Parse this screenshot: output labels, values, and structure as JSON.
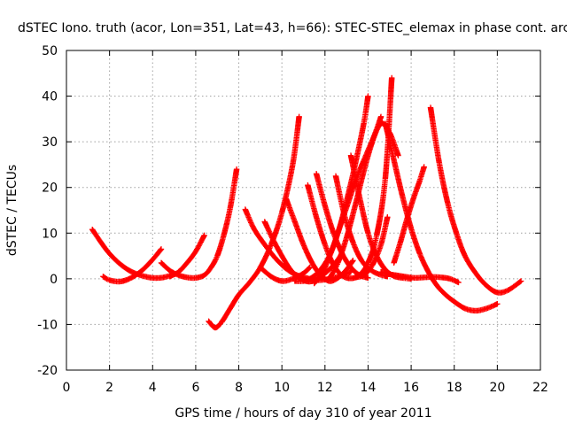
{
  "chart_data": {
    "type": "scatter",
    "title": "dSTEC Iono. truth (acor, Lon=351, Lat=43, h=66): STEC-STEC_elemax in phase cont. arc",
    "xlabel": "GPS time / hours of day 310 of year 2011",
    "ylabel": "dSTEC  / TECUs",
    "xlim": [
      0,
      22
    ],
    "ylim": [
      -20,
      50
    ],
    "xticks": [
      0,
      2,
      4,
      6,
      8,
      10,
      12,
      14,
      16,
      18,
      20,
      22
    ],
    "yticks": [
      -20,
      -10,
      0,
      10,
      20,
      30,
      40,
      50
    ],
    "grid": true,
    "marker": "plus",
    "color": "#ff0000",
    "series": [
      {
        "x": [
          1.2,
          1.6,
          2.0,
          2.5,
          3.0,
          3.5,
          4.0,
          4.5,
          5.0
        ],
        "y": [
          10.8,
          8.0,
          5.5,
          3.2,
          1.6,
          0.7,
          0.2,
          0.3,
          1.0
        ]
      },
      {
        "x": [
          1.7,
          2.0,
          2.5,
          3.0,
          3.5,
          4.0,
          4.4
        ],
        "y": [
          0.5,
          -0.3,
          -0.6,
          0.2,
          1.8,
          4.2,
          6.5
        ]
      },
      {
        "x": [
          4.4,
          4.8,
          5.2,
          5.6,
          6.0,
          6.4,
          6.7,
          7.0,
          7.3,
          7.6,
          7.9
        ],
        "y": [
          3.5,
          1.8,
          0.8,
          0.3,
          0.2,
          0.8,
          2.4,
          5.0,
          9.5,
          15.5,
          24.0
        ]
      },
      {
        "x": [
          4.8,
          5.2,
          5.6,
          6.0,
          6.4
        ],
        "y": [
          0.5,
          1.5,
          3.5,
          6.0,
          9.5
        ]
      },
      {
        "x": [
          6.6,
          6.9,
          7.2,
          7.6,
          8.0,
          8.5,
          9.0,
          9.5,
          10.0,
          10.5,
          10.8
        ],
        "y": [
          -9.3,
          -10.7,
          -9.5,
          -6.5,
          -3.5,
          -0.8,
          2.5,
          7.5,
          14.5,
          25.0,
          35.5
        ]
      },
      {
        "x": [
          8.3,
          8.7,
          9.2,
          9.7,
          10.2,
          10.7,
          11.2,
          11.7,
          12.2,
          12.7,
          13.2
        ],
        "y": [
          15.2,
          11.0,
          7.5,
          4.5,
          2.2,
          0.8,
          0.1,
          -0.3,
          0.0,
          0.6,
          1.5
        ]
      },
      {
        "x": [
          9.2,
          9.6,
          10.0,
          10.4,
          10.8,
          11.2,
          11.6,
          12.0,
          12.4,
          12.8
        ],
        "y": [
          12.5,
          8.5,
          5.0,
          2.0,
          0.2,
          -0.6,
          -0.2,
          1.2,
          3.0,
          5.5
        ]
      },
      {
        "x": [
          9.0,
          9.5,
          10.0,
          10.5,
          11.0,
          11.3
        ],
        "y": [
          2.5,
          0.5,
          -0.5,
          0.0,
          1.2,
          2.5
        ]
      },
      {
        "x": [
          10.2,
          10.6,
          11.0,
          11.4,
          11.8,
          12.2,
          12.6,
          13.0,
          13.3
        ],
        "y": [
          17.5,
          12.5,
          7.5,
          3.5,
          0.8,
          -0.5,
          0.2,
          2.0,
          4.0
        ]
      },
      {
        "x": [
          11.2,
          11.6,
          12.0,
          12.4,
          12.8,
          13.2,
          13.6,
          14.0,
          14.4,
          14.8,
          15.1
        ],
        "y": [
          20.5,
          13.5,
          7.5,
          3.0,
          0.7,
          0.1,
          0.8,
          3.5,
          9.5,
          22.0,
          44.0
        ]
      },
      {
        "x": [
          11.6,
          12.0,
          12.4,
          12.8,
          13.2,
          13.6,
          14.0
        ],
        "y": [
          23.0,
          16.0,
          10.0,
          5.5,
          2.5,
          0.8,
          0.2
        ]
      },
      {
        "x": [
          10.6,
          11.0,
          11.4,
          11.8,
          12.2,
          12.6,
          13.0,
          13.4,
          13.8,
          14.0
        ],
        "y": [
          -0.5,
          -0.5,
          0.3,
          2.0,
          5.0,
          10.0,
          17.0,
          25.0,
          34.0,
          40.0
        ]
      },
      {
        "x": [
          11.5,
          11.9,
          12.3,
          12.7,
          13.1,
          13.5,
          13.9,
          14.3,
          14.6
        ],
        "y": [
          -1.0,
          1.5,
          6.0,
          11.5,
          17.0,
          22.5,
          27.0,
          31.5,
          35.5
        ]
      },
      {
        "x": [
          12.2,
          12.6,
          13.0,
          13.4,
          13.8,
          14.2,
          14.6,
          15.0,
          15.4
        ],
        "y": [
          0.0,
          3.5,
          9.0,
          16.0,
          23.5,
          30.0,
          34.0,
          32.0,
          27.0
        ]
      },
      {
        "x": [
          12.5,
          12.9,
          13.3,
          13.7,
          14.1,
          14.5,
          14.9
        ],
        "y": [
          22.5,
          14.0,
          8.0,
          4.0,
          2.0,
          1.0,
          0.5
        ]
      },
      {
        "x": [
          13.2,
          13.6,
          14.0,
          14.4,
          14.8,
          15.2,
          15.6,
          16.0
        ],
        "y": [
          27.0,
          18.0,
          10.0,
          5.0,
          2.0,
          0.6,
          0.2,
          0.0
        ]
      },
      {
        "x": [
          13.4,
          13.8,
          14.2,
          14.6,
          14.9
        ],
        "y": [
          0.3,
          0.8,
          3.0,
          7.5,
          13.5
        ]
      },
      {
        "x": [
          14.8,
          15.2,
          15.6,
          16.0,
          16.4,
          16.8,
          17.2,
          17.6,
          18.0,
          18.5,
          19.0,
          19.5,
          20.0
        ],
        "y": [
          34.0,
          26.0,
          18.0,
          11.0,
          5.5,
          1.5,
          -1.5,
          -3.5,
          -5.0,
          -6.5,
          -7.0,
          -6.5,
          -5.5
        ]
      },
      {
        "x": [
          14.6,
          15.0,
          15.4,
          15.8,
          16.2,
          16.6,
          17.0,
          17.4,
          17.8,
          18.2
        ],
        "y": [
          1.5,
          1.0,
          0.7,
          0.4,
          0.2,
          0.3,
          0.4,
          0.3,
          0.0,
          -0.8
        ]
      },
      {
        "x": [
          15.2,
          15.5,
          15.8,
          16.1,
          16.4,
          16.6
        ],
        "y": [
          3.5,
          8.0,
          13.0,
          17.5,
          21.5,
          24.5
        ]
      },
      {
        "x": [
          16.9,
          17.3,
          17.7,
          18.1,
          18.5,
          19.0,
          19.5,
          20.0,
          20.5,
          21.1
        ],
        "y": [
          37.5,
          25.5,
          16.5,
          10.0,
          5.0,
          1.2,
          -1.5,
          -3.0,
          -2.5,
          -0.5
        ]
      }
    ]
  }
}
